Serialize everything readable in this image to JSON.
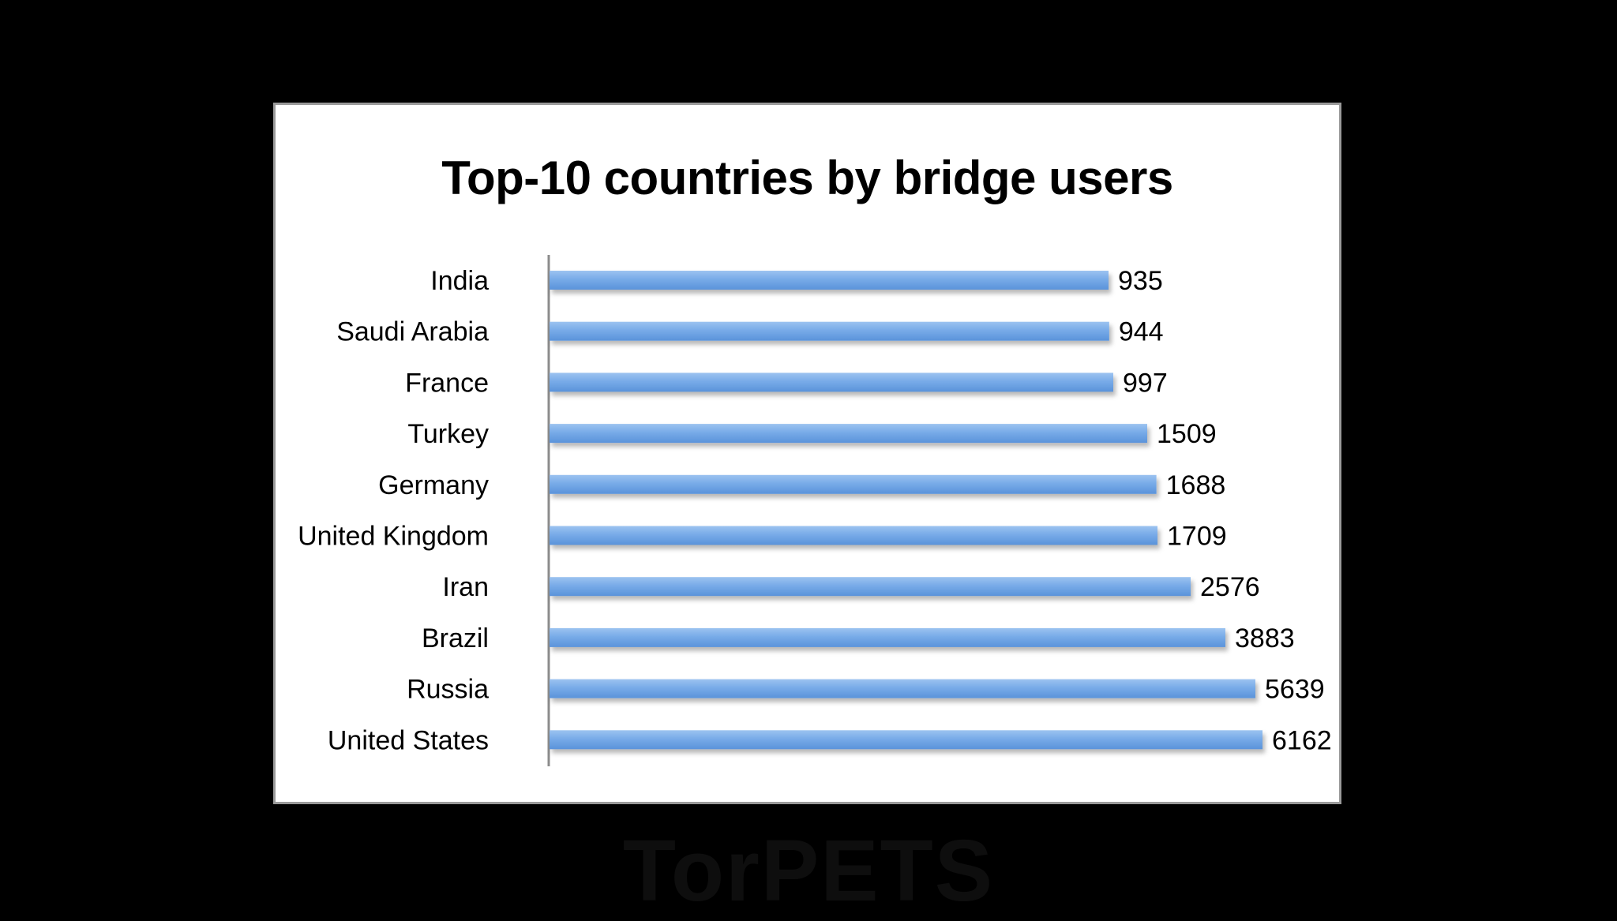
{
  "chart_data": {
    "type": "bar",
    "orientation": "horizontal",
    "title": "Top-10 countries by bridge users",
    "categories": [
      "India",
      "Saudi Arabia",
      "France",
      "Turkey",
      "Germany",
      "United Kingdom",
      "Iran",
      "Brazil",
      "Russia",
      "United States"
    ],
    "values": [
      935,
      944,
      997,
      1509,
      1688,
      1709,
      2576,
      3883,
      5639,
      6162
    ],
    "data_labels": [
      "935",
      "944",
      "997",
      "1509",
      "1688",
      "1709",
      "2576",
      "3883",
      "5639",
      "6162"
    ],
    "xlabel": "",
    "ylabel": "",
    "grid": false,
    "legend": "none",
    "bar_color": "#6fa6e6",
    "scale": "non-linear (broken axis)"
  },
  "watermark": {
    "text": "TorPETS"
  }
}
